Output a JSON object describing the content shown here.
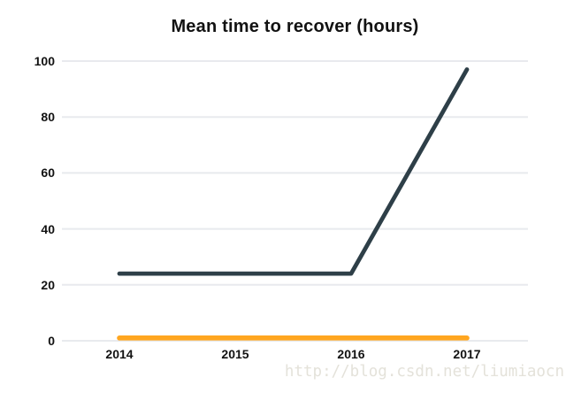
{
  "page": {
    "background": "#ffffff",
    "grid_color": "#e8eaee",
    "text_color": "#121212"
  },
  "chart_data": {
    "type": "line",
    "title": "Mean time to recover (hours)",
    "categories": [
      "2014",
      "2015",
      "2016",
      "2017"
    ],
    "series": [
      {
        "name": "dark-slate-series",
        "color": "#2e3f48",
        "stroke_width": 4.8,
        "values": [
          24,
          24,
          24,
          97
        ]
      },
      {
        "name": "orange-series",
        "color": "#ffa620",
        "stroke_width": 5.6,
        "values": [
          1,
          1,
          1,
          1
        ]
      }
    ],
    "xlabel": "",
    "ylabel": "",
    "ylim": [
      0,
      100
    ],
    "yticks": [
      0,
      20,
      40,
      60,
      80,
      100
    ],
    "grid": "horizontal only",
    "legend": "none"
  },
  "watermark": {
    "text": "http://blog.csdn.net/liumiaocn",
    "color": "#e4e2da"
  }
}
